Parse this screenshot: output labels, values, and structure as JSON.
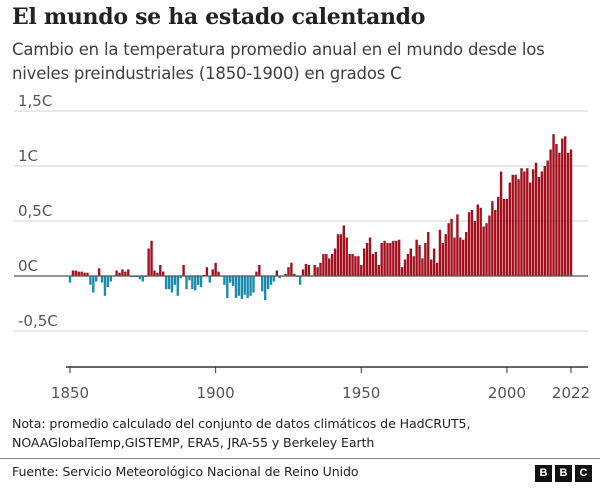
{
  "title": "El mundo se ha estado calentando",
  "subtitle": "Cambio en la temperatura promedio anual en el mundo desde los niveles preindustriales (1850-1900) en grados C",
  "note": "Nota: promedio calculado del conjunto de datos climáticos de HadCRUT5, NOAAGlobalTemp,GISTEMP, ERA5, JRA-55 y Berkeley Earth",
  "source": "Fuente: Servicio Meteorológico Nacional de Reino Unido",
  "logo": [
    "B",
    "B",
    "C"
  ],
  "chart_data": {
    "type": "bar",
    "title": "El mundo se ha estado calentando",
    "xlabel": "",
    "ylabel": "",
    "x_start": 1850,
    "x_end": 2022,
    "ylim": [
      -0.7,
      1.6
    ],
    "grid": true,
    "yticks": [
      {
        "v": 1.5,
        "label": "1,5C"
      },
      {
        "v": 1,
        "label": "1C"
      },
      {
        "v": 0.5,
        "label": "0,5C"
      },
      {
        "v": 0,
        "label": "0C"
      },
      {
        "v": -0.5,
        "label": "-0,5C"
      }
    ],
    "xticks": [
      {
        "v": 1850,
        "label": "1850"
      },
      {
        "v": 1900,
        "label": "1900"
      },
      {
        "v": 1950,
        "label": "1950"
      },
      {
        "v": 2000,
        "label": "2000"
      },
      {
        "v": 2022,
        "label": "2022"
      }
    ],
    "colors": {
      "positive": "#a30f1d",
      "negative": "#1a8bad"
    },
    "values": [
      -0.06,
      0.05,
      0.05,
      0.04,
      0.04,
      0.03,
      0.03,
      -0.08,
      -0.15,
      -0.05,
      0.07,
      -0.06,
      -0.18,
      -0.1,
      -0.05,
      0.0,
      0.05,
      0.03,
      0.06,
      0.04,
      0.06,
      -0.01,
      -0.01,
      -0.01,
      -0.03,
      -0.05,
      -0.01,
      0.25,
      0.32,
      0.05,
      0.03,
      0.1,
      0.04,
      -0.12,
      -0.12,
      -0.15,
      -0.08,
      -0.18,
      -0.02,
      0.1,
      -0.12,
      -0.04,
      -0.12,
      -0.13,
      -0.08,
      -0.1,
      0.01,
      0.08,
      -0.06,
      0.06,
      0.12,
      0.04,
      0.0,
      -0.08,
      -0.2,
      -0.06,
      -0.09,
      -0.2,
      -0.18,
      -0.21,
      -0.17,
      -0.2,
      -0.18,
      -0.15,
      0.04,
      0.1,
      -0.14,
      -0.22,
      -0.12,
      -0.08,
      -0.05,
      0.05,
      -0.02,
      0.0,
      0.02,
      0.08,
      0.12,
      0.02,
      -0.01,
      -0.08,
      0.06,
      0.11,
      0.1,
      0.0,
      0.1,
      0.08,
      0.12,
      0.2,
      0.2,
      0.16,
      0.2,
      0.25,
      0.38,
      0.38,
      0.46,
      0.35,
      0.2,
      0.2,
      0.18,
      0.18,
      0.1,
      0.25,
      0.3,
      0.35,
      0.2,
      0.22,
      0.1,
      0.3,
      0.32,
      0.3,
      0.3,
      0.32,
      0.32,
      0.33,
      0.08,
      0.15,
      0.2,
      0.25,
      0.18,
      0.33,
      0.28,
      0.16,
      0.3,
      0.4,
      0.15,
      0.25,
      0.12,
      0.42,
      0.3,
      0.38,
      0.48,
      0.52,
      0.35,
      0.56,
      0.35,
      0.33,
      0.4,
      0.58,
      0.6,
      0.5,
      0.65,
      0.62,
      0.45,
      0.48,
      0.55,
      0.68,
      0.6,
      0.72,
      0.95,
      0.7,
      0.7,
      0.85,
      0.92,
      0.92,
      0.88,
      0.98,
      0.95,
      0.98,
      0.85,
      0.97,
      1.03,
      0.9,
      0.95,
      1.0,
      1.05,
      1.15,
      1.29,
      1.2,
      1.12,
      1.25,
      1.27,
      1.12,
      1.15
    ]
  }
}
